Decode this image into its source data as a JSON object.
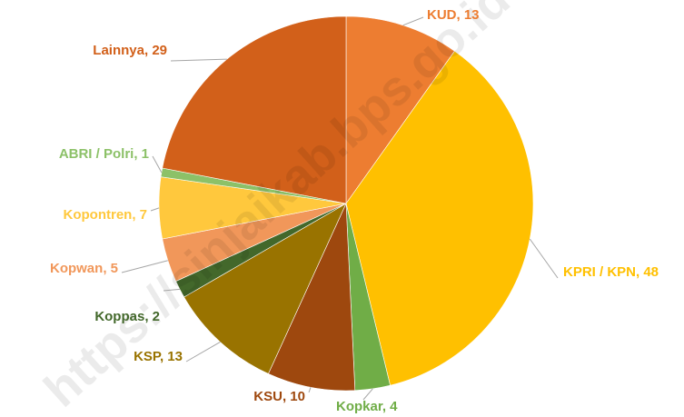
{
  "chart_data": {
    "type": "pie",
    "values": [
      13,
      48,
      4,
      10,
      13,
      2,
      5,
      7,
      1,
      29
    ],
    "value_labels": [
      "KUD, 13",
      "KPRI / KPN, 48",
      "Kopkar, 4",
      "KSU, 10",
      "KSP, 13",
      "Koppas, 2",
      "Kopwan, 5",
      "Kopontren, 7",
      "ABRI / Polri, 1",
      "Lainnya, 29"
    ],
    "colors": [
      "#ED7D31",
      "#FFC000",
      "#70AD47",
      "#9E480E",
      "#997300",
      "#43682B",
      "#F1975A",
      "#FFC83D",
      "#8CC168",
      "#D2601A"
    ],
    "watermark": "https://sinjaikab.bps.go.id"
  }
}
